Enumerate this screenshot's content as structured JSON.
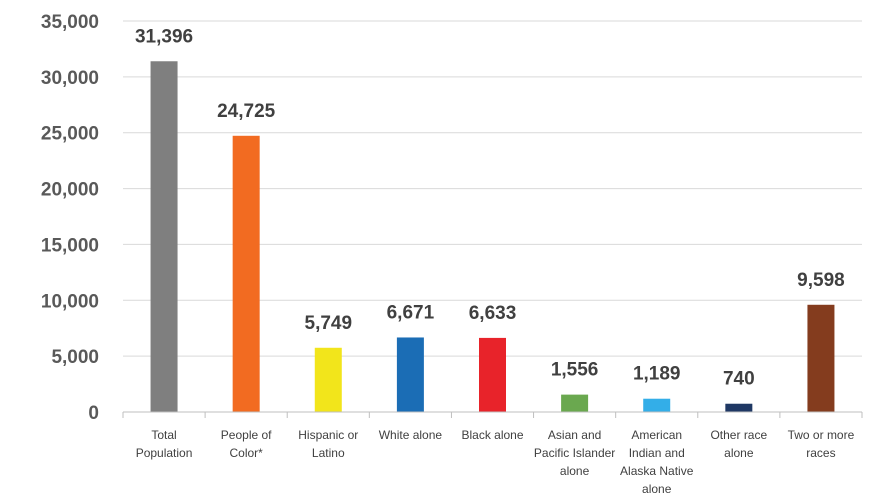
{
  "chart_data": {
    "type": "bar",
    "categories": [
      [
        "Total",
        "Population"
      ],
      [
        "People of",
        "Color*"
      ],
      [
        "Hispanic or",
        "Latino"
      ],
      [
        "White alone"
      ],
      [
        "Black alone"
      ],
      [
        "Asian and",
        "Pacific Islander",
        "alone"
      ],
      [
        "American",
        "Indian and",
        "Alaska Native",
        "alone"
      ],
      [
        "Other race",
        "alone"
      ],
      [
        "Two or more",
        "races"
      ]
    ],
    "values": [
      31396,
      24725,
      5749,
      6671,
      6633,
      1556,
      1189,
      740,
      9598
    ],
    "data_labels": [
      "31,396",
      "24,725",
      "5,749",
      "6,671",
      "6,633",
      "1,556",
      "1,189",
      "740",
      "9,598"
    ],
    "colors": [
      "#7f7f7f",
      "#f26b21",
      "#f2e51b",
      "#1b6db5",
      "#e8232a",
      "#6aa84f",
      "#33aee8",
      "#1f3864",
      "#843c1e"
    ],
    "yticks": [
      0,
      5000,
      10000,
      15000,
      20000,
      25000,
      30000,
      35000
    ],
    "ytick_labels": [
      "0",
      "5,000",
      "10,000",
      "15,000",
      "20,000",
      "25,000",
      "30,000",
      "35,000"
    ],
    "ylim": [
      0,
      35000
    ],
    "grid": true,
    "legend": "none"
  }
}
